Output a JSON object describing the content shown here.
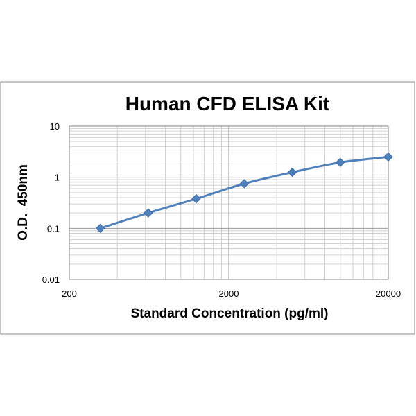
{
  "chart_data": {
    "type": "line",
    "title": "Human CFD ELISA Kit",
    "xlabel": "Standard Concentration (pg/ml)",
    "ylabel": "O.D.  450nm",
    "x_scale": "log",
    "y_scale": "log",
    "xlim": [
      200,
      20000
    ],
    "ylim": [
      0.01,
      10
    ],
    "x_tick_labels": [
      "200",
      "2000",
      "20000"
    ],
    "y_tick_labels": [
      "10",
      "1",
      "0.1",
      "0.01"
    ],
    "grid": true,
    "legend": "none",
    "series": [
      {
        "x": [
          312.5,
          625,
          1250,
          2500,
          5000,
          10000,
          20000
        ],
        "y": [
          0.1,
          0.2,
          0.38,
          0.75,
          1.25,
          1.95,
          2.5
        ],
        "color": "#4F81BD",
        "marker": "diamond"
      }
    ]
  }
}
